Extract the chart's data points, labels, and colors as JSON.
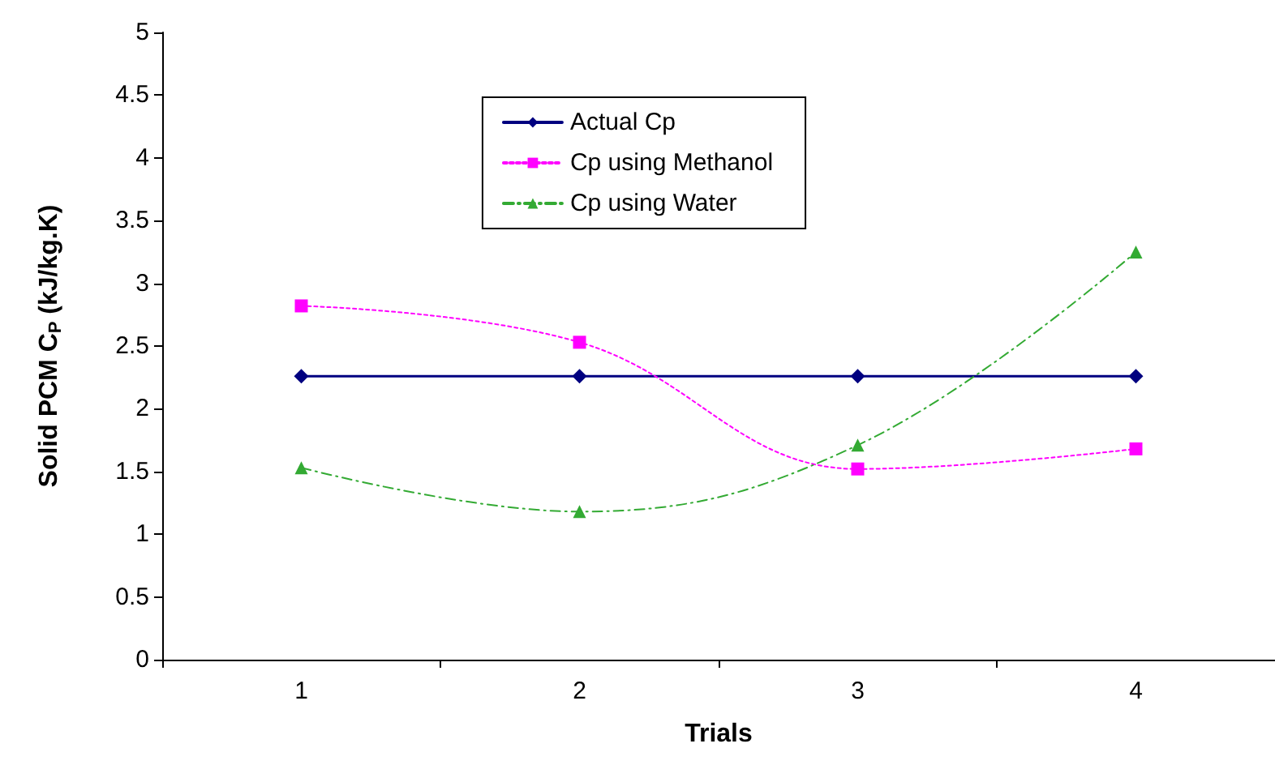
{
  "chart_data": {
    "type": "line",
    "xlabel": "Trials",
    "ylabel": "Solid PCM C$_{P}$ (kJ/kg.K)",
    "categories": [
      "1",
      "2",
      "3",
      "4"
    ],
    "series": [
      {
        "name": "Actual Cp",
        "color": "#000080",
        "values": [
          2.26,
          2.26,
          2.26,
          2.26
        ],
        "marker": "diamond",
        "line_style": "solid"
      },
      {
        "name": "Cp using Methanol",
        "color": "#ff00ff",
        "values": [
          2.82,
          2.53,
          1.52,
          1.68
        ],
        "marker": "square",
        "line_style": "dotted"
      },
      {
        "name": "Cp using Water",
        "color": "#33aa33",
        "values": [
          1.53,
          1.18,
          1.71,
          3.25
        ],
        "marker": "triangle",
        "line_style": "dashed"
      }
    ],
    "ylim": [
      0,
      5
    ],
    "yticks": [
      0,
      0.5,
      1,
      1.5,
      2,
      2.5,
      3,
      3.5,
      4,
      4.5,
      5
    ],
    "grid": false,
    "legend": "top"
  }
}
